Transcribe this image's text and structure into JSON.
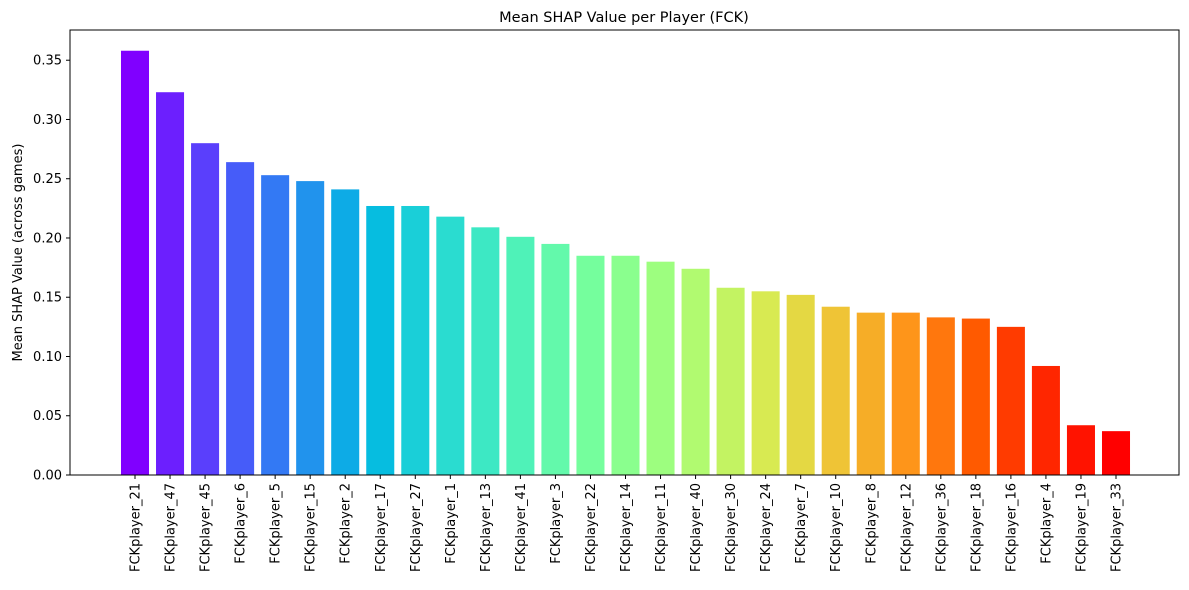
{
  "chart_data": {
    "type": "bar",
    "title": "Mean SHAP Value per Player (FCK)",
    "xlabel": "",
    "ylabel": "Mean SHAP Value (across games)",
    "ylim": [
      0,
      0.3755
    ],
    "yticks": [
      "0.00",
      "0.05",
      "0.10",
      "0.15",
      "0.20",
      "0.25",
      "0.30",
      "0.35"
    ],
    "grid": false,
    "legend": "none",
    "colormap": "rainbow",
    "categories": [
      "FCKplayer_21",
      "FCKplayer_47",
      "FCKplayer_45",
      "FCKplayer_6",
      "FCKplayer_5",
      "FCKplayer_15",
      "FCKplayer_2",
      "FCKplayer_17",
      "FCKplayer_27",
      "FCKplayer_1",
      "FCKplayer_13",
      "FCKplayer_41",
      "FCKplayer_3",
      "FCKplayer_22",
      "FCKplayer_14",
      "FCKplayer_11",
      "FCKplayer_40",
      "FCKplayer_30",
      "FCKplayer_24",
      "FCKplayer_7",
      "FCKplayer_10",
      "FCKplayer_8",
      "FCKplayer_12",
      "FCKplayer_36",
      "FCKplayer_18",
      "FCKplayer_16",
      "FCKplayer_4",
      "FCKplayer_19",
      "FCKplayer_33"
    ],
    "values": [
      0.358,
      0.323,
      0.28,
      0.264,
      0.253,
      0.248,
      0.241,
      0.227,
      0.227,
      0.218,
      0.209,
      0.201,
      0.195,
      0.185,
      0.185,
      0.18,
      0.174,
      0.158,
      0.155,
      0.152,
      0.142,
      0.137,
      0.137,
      0.133,
      0.132,
      0.125,
      0.092,
      0.042,
      0.037
    ],
    "colors": [
      "#8000ff",
      "#6c1ffe",
      "#5a3ffc",
      "#465cf9",
      "#3379f4",
      "#2193ed",
      "#0dabe6",
      "#06bde0",
      "#1acfd8",
      "#2adcd0",
      "#3de8c4",
      "#4ff2b8",
      "#63f9ab",
      "#75fe9d",
      "#8aff8e",
      "#9dfe7f",
      "#b1fa70",
      "#c3f362",
      "#d8ea52",
      "#e4d843",
      "#efc436",
      "#f6ad27",
      "#fe951a",
      "#ff770d",
      "#ff5a00",
      "#ff3b00",
      "#ff2600",
      "#ff1300",
      "#ff0000"
    ]
  }
}
